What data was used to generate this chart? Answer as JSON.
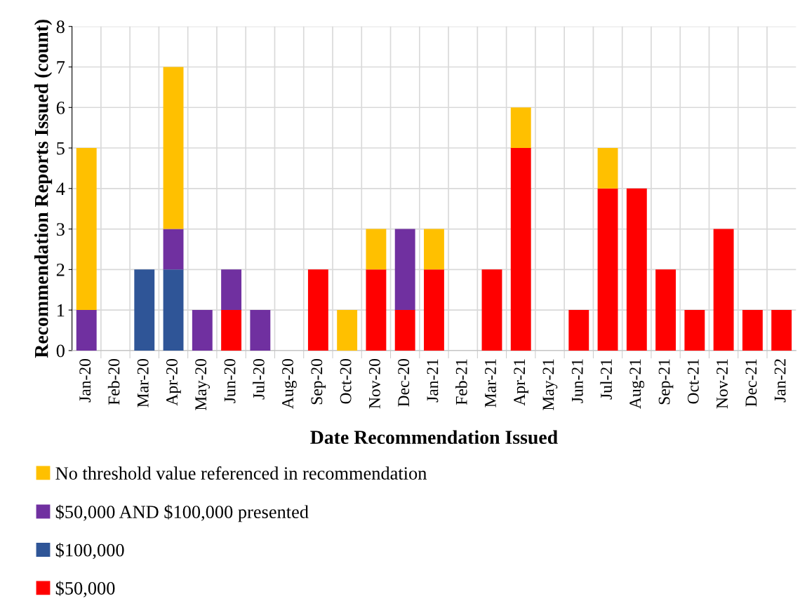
{
  "chart_data": {
    "type": "bar",
    "stacked": true,
    "xlabel": "Date Recommendation Issued",
    "ylabel": "Recommendation Reports Issued (count)",
    "categories": [
      "Jan-20",
      "Feb-20",
      "Mar-20",
      "Apr-20",
      "May-20",
      "Jun-20",
      "Jul-20",
      "Aug-20",
      "Sep-20",
      "Oct-20",
      "Nov-20",
      "Dec-20",
      "Jan-21",
      "Feb-21",
      "Mar-21",
      "Apr-21",
      "May-21",
      "Jun-21",
      "Jul-21",
      "Aug-21",
      "Sep-21",
      "Oct-21",
      "Nov-21",
      "Dec-21",
      "Jan-22"
    ],
    "series": [
      {
        "name": "$50,000",
        "color": "#ff0000",
        "values": [
          0,
          0,
          0,
          0,
          0,
          1,
          0,
          0,
          2,
          0,
          2,
          1,
          2,
          0,
          2,
          5,
          0,
          1,
          4,
          4,
          2,
          1,
          3,
          1,
          1
        ]
      },
      {
        "name": "$100,000",
        "color": "#2f5597",
        "values": [
          0,
          0,
          2,
          2,
          0,
          0,
          0,
          0,
          0,
          0,
          0,
          0,
          0,
          0,
          0,
          0,
          0,
          0,
          0,
          0,
          0,
          0,
          0,
          0,
          0
        ]
      },
      {
        "name": "$50,000 AND $100,000 presented",
        "color": "#7030a0",
        "values": [
          1,
          0,
          0,
          1,
          1,
          1,
          1,
          0,
          0,
          0,
          0,
          2,
          0,
          0,
          0,
          0,
          0,
          0,
          0,
          0,
          0,
          0,
          0,
          0,
          0
        ]
      },
      {
        "name": "No threshold value referenced in recommendation",
        "color": "#ffc000",
        "values": [
          4,
          0,
          0,
          4,
          0,
          0,
          0,
          0,
          0,
          1,
          1,
          0,
          1,
          0,
          0,
          1,
          0,
          0,
          1,
          0,
          0,
          0,
          0,
          0,
          0
        ]
      }
    ],
    "ylim": [
      0,
      8
    ],
    "yticks": [
      0,
      1,
      2,
      3,
      4,
      5,
      6,
      7,
      8
    ],
    "grid": true,
    "legend": "bottom"
  }
}
